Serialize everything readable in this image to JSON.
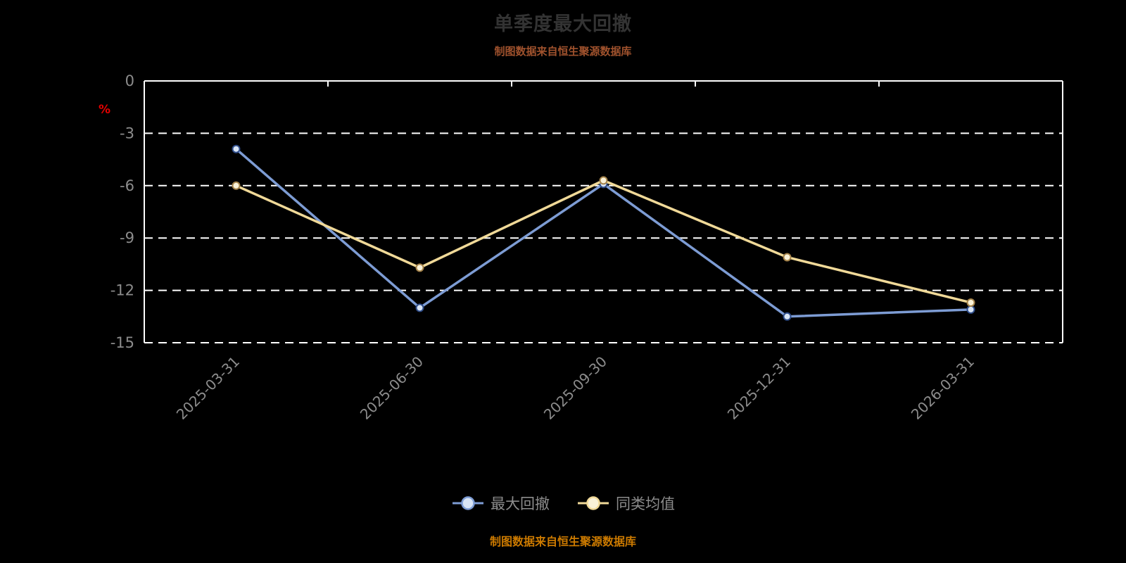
{
  "title": "单季度最大回撤",
  "subtitle": "制图数据来自恒生聚源数据库",
  "footer": "制图数据来自恒生聚源数据库",
  "colors": {
    "background": "#000000",
    "title": "#333333",
    "subtitle": "#a0522d",
    "footer": "#cc7a00",
    "axis_label": "#8c8c8c",
    "axis_line": "#ffffff",
    "grid_line": "#ffffff",
    "unit_label": "#e60000",
    "legend_label": "#8c8c8c"
  },
  "chart_data": {
    "type": "line",
    "title": "单季度最大回撤",
    "ylabel": "%",
    "ylim": [
      -15,
      0
    ],
    "yticks": [
      0,
      -3,
      -6,
      -9,
      -12,
      -15
    ],
    "grid": "horizontal dashed white gridlines on black",
    "legend_position": "bottom",
    "categories": [
      "2025-03-31",
      "2025-06-30",
      "2025-09-30",
      "2025-12-31",
      "2026-03-31"
    ],
    "series": [
      {
        "name": "最大回撤",
        "color": "#7d9cd4",
        "marker_fill": "#d9e5f5",
        "marker_stroke": "#2f4d8a",
        "values": [
          -3.9,
          -13.0,
          -5.9,
          -13.5,
          -13.1
        ]
      },
      {
        "name": "同类均值",
        "color": "#f0d998",
        "marker_fill": "#faf2d8",
        "marker_stroke": "#a5834a",
        "values": [
          -6.0,
          -10.7,
          -5.7,
          -10.1,
          -12.7
        ]
      }
    ]
  }
}
